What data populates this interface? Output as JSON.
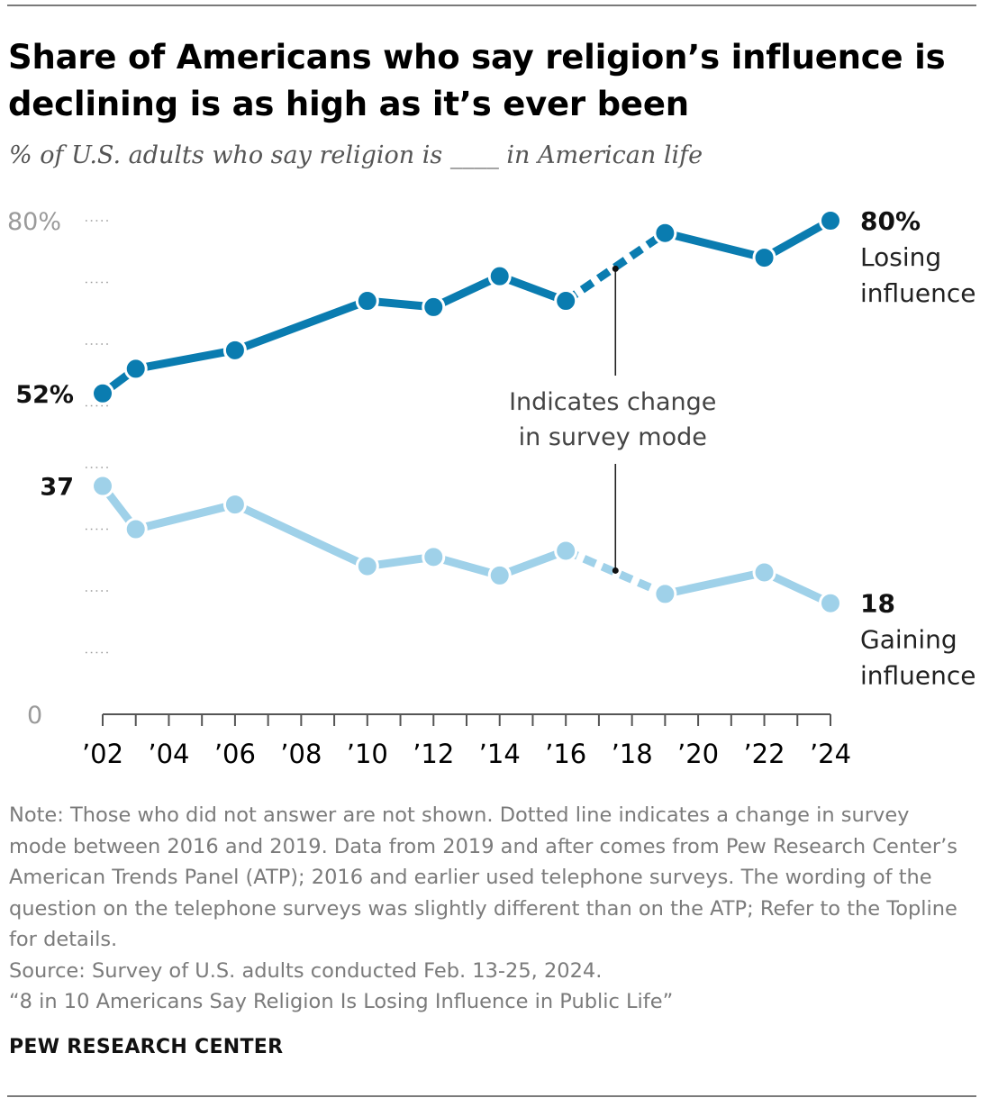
{
  "title": "Share of Americans who say religion’s influence is declining is as high as it’s ever been",
  "subtitle": "% of U.S. adults who say religion is ____ in American life",
  "chart_data": {
    "type": "line",
    "ylim": [
      0,
      80
    ],
    "y_ticks": [
      "80%",
      "0"
    ],
    "x_ticks": [
      "’02",
      "’04",
      "’06",
      "’08",
      "’10",
      "’12",
      "’14",
      "’16",
      "’18",
      "’20",
      "’22",
      "’24"
    ],
    "grid": "dotted horizontal at every 10%",
    "series": [
      {
        "name": "Losing influence",
        "color": "#0a7cb0",
        "x": [
          2002,
          2003,
          2006,
          2010,
          2012,
          2014,
          2016,
          2019,
          2022,
          2024
        ],
        "values": [
          52,
          56,
          59,
          67,
          66,
          71,
          67,
          78,
          74,
          80
        ],
        "start_label": "52%",
        "end_label": "80%",
        "label_lines": [
          "Losing",
          "influence"
        ]
      },
      {
        "name": "Gaining influence",
        "color": "#9fd1e9",
        "x": [
          2002,
          2003,
          2006,
          2010,
          2012,
          2014,
          2016,
          2019,
          2022,
          2024
        ],
        "values": [
          37,
          30,
          34,
          24,
          25.5,
          22.5,
          26.5,
          19.5,
          23,
          18
        ],
        "start_label": "37",
        "end_label": "18",
        "label_lines": [
          "Gaining",
          "influence"
        ]
      }
    ],
    "annotation": {
      "lines": [
        "Indicates change",
        "in survey mode"
      ],
      "x": 2017.5
    },
    "mode_change": {
      "from_year": 2016,
      "to_year": 2019,
      "style": "dotted"
    }
  },
  "notes": {
    "note": "Note: Those who did not answer are not shown. Dotted line indicates a change in survey mode between 2016 and 2019. Data from 2019 and after comes from Pew Research Center’s American Trends Panel (ATP); 2016 and earlier used telephone surveys. The wording of the question on the telephone surveys was slightly different than on the ATP; Refer to the Topline for details.",
    "source": "Source: Survey of U.S. adults conducted Feb. 13-25, 2024.",
    "report": "“8 in 10 Americans Say Religion Is Losing Influence in Public Life”"
  },
  "brand": "PEW RESEARCH CENTER"
}
